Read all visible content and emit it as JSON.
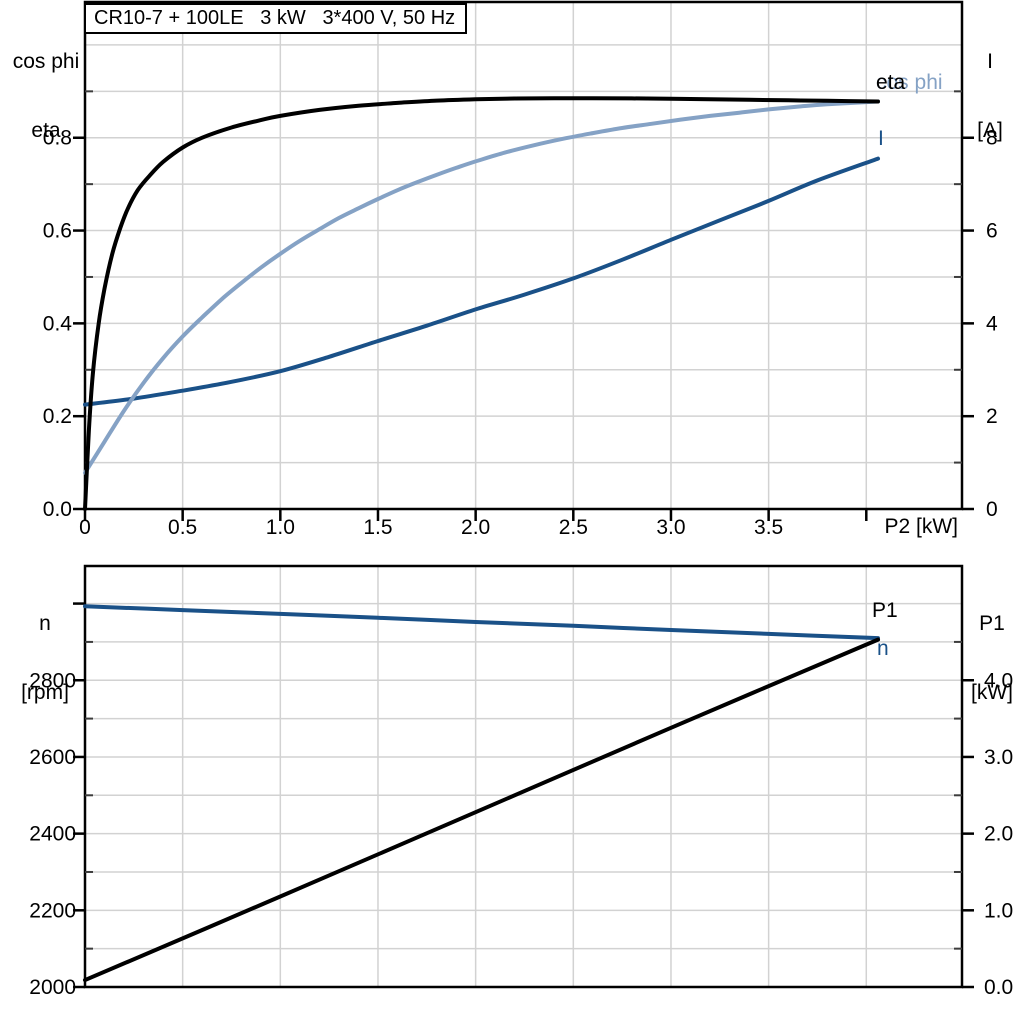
{
  "colors": {
    "black": "#000000",
    "dark_blue": "#1a5188",
    "light_blue": "#85a2c5",
    "grid": "#d2d2d2",
    "minor_tick": "#3c3c3c",
    "background": "#ffffff"
  },
  "chart_data": [
    {
      "type": "line",
      "title": "CR10-7 + 100LE   3 kW   3*400 V, 50 Hz",
      "x_axis": {
        "label": "P2 [kW]",
        "range": [
          0,
          4.49
        ],
        "grid": [
          0.5,
          1,
          1.5,
          2,
          2.5,
          3,
          3.5,
          4
        ],
        "tick_values": [
          0,
          0.5,
          1,
          1.5,
          2,
          2.5,
          3,
          3.5,
          4
        ],
        "tick_labels": [
          "0",
          "0.5",
          "1.0",
          "1.5",
          "2.0",
          "2.5",
          "3.0",
          "3.5",
          ""
        ]
      },
      "y_left": {
        "title_lines": [
          "cos phi",
          "eta"
        ],
        "range": [
          0,
          1.0925
        ],
        "grid": [
          0.1,
          0.2,
          0.3,
          0.4,
          0.5,
          0.6,
          0.7,
          0.8,
          0.9,
          1.0
        ],
        "tick_values": [
          0,
          0.2,
          0.4,
          0.6,
          0.8
        ],
        "tick_labels": [
          "0.0",
          "0.2",
          "0.4",
          "0.6",
          "0.8"
        ],
        "minor_ticks": [
          0.1,
          0.3,
          0.5,
          0.7,
          0.9
        ]
      },
      "y_right": {
        "title_lines": [
          "I",
          "[A]"
        ],
        "range": [
          0,
          10.925
        ],
        "tick_values": [
          0,
          2,
          4,
          6,
          8
        ],
        "tick_labels": [
          "0",
          "2",
          "4",
          "6",
          "8"
        ],
        "minor_ticks": [
          1,
          3,
          5,
          7,
          9
        ]
      },
      "series": [
        {
          "name": "I",
          "axis": "right",
          "color": "#1a5188",
          "points": [
            [
              0,
              2.25
            ],
            [
              0.25,
              2.38
            ],
            [
              0.5,
              2.55
            ],
            [
              0.75,
              2.74
            ],
            [
              1,
              2.97
            ],
            [
              1.25,
              3.28
            ],
            [
              1.5,
              3.62
            ],
            [
              1.75,
              3.95
            ],
            [
              2,
              4.3
            ],
            [
              2.25,
              4.62
            ],
            [
              2.5,
              4.97
            ],
            [
              2.75,
              5.37
            ],
            [
              3,
              5.8
            ],
            [
              3.25,
              6.22
            ],
            [
              3.5,
              6.64
            ],
            [
              3.75,
              7.08
            ],
            [
              4.06,
              7.55
            ]
          ]
        },
        {
          "name": "cos phi",
          "axis": "left",
          "color": "#85a2c5",
          "points": [
            [
              0,
              0.078
            ],
            [
              0.1,
              0.145
            ],
            [
              0.2,
              0.212
            ],
            [
              0.3,
              0.272
            ],
            [
              0.4,
              0.325
            ],
            [
              0.5,
              0.372
            ],
            [
              0.6,
              0.413
            ],
            [
              0.7,
              0.452
            ],
            [
              0.8,
              0.487
            ],
            [
              0.9,
              0.52
            ],
            [
              1,
              0.55
            ],
            [
              1.1,
              0.578
            ],
            [
              1.2,
              0.603
            ],
            [
              1.3,
              0.627
            ],
            [
              1.4,
              0.648
            ],
            [
              1.5,
              0.668
            ],
            [
              1.6,
              0.687
            ],
            [
              1.7,
              0.704
            ],
            [
              1.8,
              0.72
            ],
            [
              1.9,
              0.735
            ],
            [
              2,
              0.749
            ],
            [
              2.15,
              0.768
            ],
            [
              2.3,
              0.784
            ],
            [
              2.45,
              0.798
            ],
            [
              2.6,
              0.81
            ],
            [
              2.75,
              0.821
            ],
            [
              2.9,
              0.83
            ],
            [
              3.05,
              0.839
            ],
            [
              3.2,
              0.847
            ],
            [
              3.35,
              0.854
            ],
            [
              3.5,
              0.861
            ],
            [
              3.65,
              0.867
            ],
            [
              3.8,
              0.872
            ],
            [
              4.06,
              0.878
            ]
          ]
        },
        {
          "name": "eta",
          "axis": "left",
          "color": "#000000",
          "points": [
            [
              0,
              0
            ],
            [
              0.02,
              0.17
            ],
            [
              0.04,
              0.29
            ],
            [
              0.07,
              0.4
            ],
            [
              0.1,
              0.475
            ],
            [
              0.14,
              0.55
            ],
            [
              0.18,
              0.605
            ],
            [
              0.22,
              0.648
            ],
            [
              0.27,
              0.687
            ],
            [
              0.33,
              0.718
            ],
            [
              0.4,
              0.748
            ],
            [
              0.5,
              0.779
            ],
            [
              0.6,
              0.8
            ],
            [
              0.75,
              0.822
            ],
            [
              0.9,
              0.838
            ],
            [
              1,
              0.847
            ],
            [
              1.2,
              0.86
            ],
            [
              1.4,
              0.869
            ],
            [
              1.6,
              0.875
            ],
            [
              1.8,
              0.88
            ],
            [
              2,
              0.883
            ],
            [
              2.2,
              0.8845
            ],
            [
              2.4,
              0.885
            ],
            [
              2.6,
              0.885
            ],
            [
              2.8,
              0.8848
            ],
            [
              3,
              0.884
            ],
            [
              3.2,
              0.883
            ],
            [
              3.4,
              0.8818
            ],
            [
              3.6,
              0.8806
            ],
            [
              3.8,
              0.8795
            ],
            [
              4.06,
              0.878
            ]
          ]
        }
      ]
    },
    {
      "type": "line",
      "title": "",
      "x_axis": {
        "label": "",
        "range": [
          0,
          4.49
        ],
        "grid": [
          0.5,
          1,
          1.5,
          2,
          2.5,
          3,
          3.5,
          4
        ],
        "tick_values": [],
        "tick_labels": []
      },
      "y_left": {
        "title_lines": [
          "n",
          "[rpm]"
        ],
        "range": [
          2000,
          3098
        ],
        "grid": [
          2100,
          2200,
          2300,
          2400,
          2500,
          2600,
          2700,
          2800,
          2900,
          3000
        ],
        "tick_values": [
          2000,
          2200,
          2400,
          2600,
          2800,
          3000
        ],
        "tick_labels": [
          "2000",
          "2200",
          "2400",
          "2600",
          "2800",
          ""
        ],
        "minor_ticks": [
          2100,
          2300,
          2500,
          2700,
          2900
        ]
      },
      "y_right": {
        "title_lines": [
          "P1",
          "[kW]"
        ],
        "range": [
          0,
          5.49
        ],
        "tick_values": [
          0,
          1,
          2,
          3,
          4
        ],
        "tick_labels": [
          "0.0",
          "1.0",
          "2.0",
          "3.0",
          "4.0"
        ],
        "minor_ticks": [
          0.5,
          1.5,
          2.5,
          3.5,
          4.5
        ]
      },
      "series": [
        {
          "name": "n",
          "axis": "left",
          "color": "#1a5188",
          "points": [
            [
              0,
              2993
            ],
            [
              0.5,
              2983
            ],
            [
              1,
              2973
            ],
            [
              1.5,
              2963
            ],
            [
              2,
              2952
            ],
            [
              2.5,
              2942
            ],
            [
              3,
              2931
            ],
            [
              3.5,
              2921
            ],
            [
              4.06,
              2910
            ]
          ]
        },
        {
          "name": "P1",
          "axis": "right",
          "color": "#000000",
          "points": [
            [
              0,
              0.09
            ],
            [
              1,
              1.18
            ],
            [
              2,
              2.28
            ],
            [
              3,
              3.38
            ],
            [
              4.06,
              4.53
            ]
          ]
        }
      ]
    }
  ]
}
